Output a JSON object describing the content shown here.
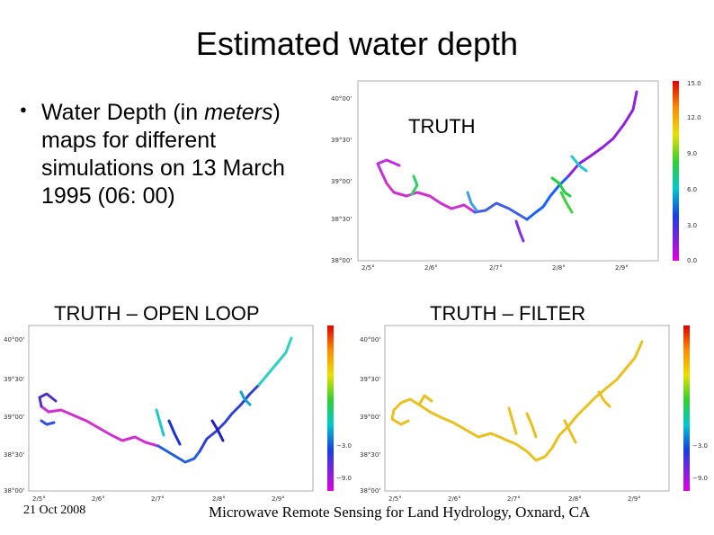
{
  "slide": {
    "title": "Estimated water depth",
    "bullet_prefix": "Water Depth (in ",
    "bullet_emph": "meters",
    "bullet_suffix": ") maps for different simulations on 13 March 1995 (06: 00)",
    "footer_left": "21 Oct 2008",
    "footer_center": "Microwave Remote Sensing for Land Hydrology, Oxnard, CA"
  },
  "panels": {
    "truth": {
      "label": "TRUTH",
      "lat_ticks": [
        "40°00'",
        "39°30'",
        "39°00'",
        "38°30'",
        "38°00'"
      ],
      "lon_ticks": [
        "2/5°",
        "2/6°",
        "2/7°",
        "2/8°",
        "2/9°"
      ],
      "colorbar_ticks": [
        "15.0",
        "12.0",
        "9.0",
        "6.0",
        "3.0",
        "0.0"
      ]
    },
    "open_loop": {
      "label": "TRUTH – OPEN LOOP",
      "lat_ticks": [
        "40°00'",
        "39°30'",
        "39°00'",
        "38°30'",
        "38°00'"
      ],
      "lon_ticks": [
        "2/5°",
        "2/6°",
        "2/7°",
        "2/8°",
        "2/9°"
      ],
      "colorbar_ticks": [
        "−3.0",
        "−9.0"
      ]
    },
    "filter": {
      "label": "TRUTH – FILTER",
      "lat_ticks": [
        "40°00'",
        "39°30'",
        "39°00'",
        "38°30'",
        "38°00'"
      ],
      "lon_ticks": [
        "2/5°",
        "2/6°",
        "2/7°",
        "2/8°",
        "2/9°"
      ],
      "colorbar_ticks": [
        "−3.0",
        "−9.0"
      ]
    }
  },
  "colors": {
    "river_filter": "#e8c020",
    "frame": "#999999"
  }
}
